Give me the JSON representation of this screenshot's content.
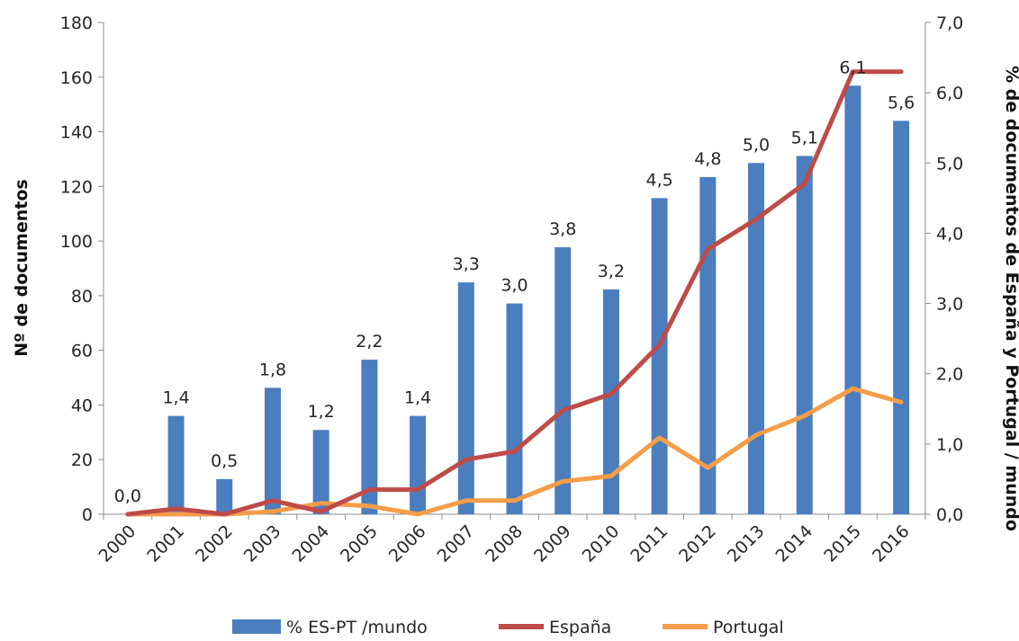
{
  "chart_data": {
    "type": "bar",
    "categories": [
      "2000",
      "2001",
      "2002",
      "2003",
      "2004",
      "2005",
      "2006",
      "2007",
      "2008",
      "2009",
      "2010",
      "2011",
      "2012",
      "2013",
      "2014",
      "2015",
      "2016"
    ],
    "series": [
      {
        "name": "% ES-PT /mundo",
        "kind": "bar",
        "axis": "right",
        "color": "#4a7ebf",
        "values": [
          0.0,
          1.4,
          0.5,
          1.8,
          1.2,
          2.2,
          1.4,
          3.3,
          3.0,
          3.8,
          3.2,
          4.5,
          4.8,
          5.0,
          5.1,
          6.1,
          5.6
        ],
        "labels": [
          "0,0",
          "1,4",
          "0,5",
          "1,8",
          "1,2",
          "2,2",
          "1,4",
          "3,3",
          "3,0",
          "3,8",
          "3,2",
          "4,5",
          "4,8",
          "5,0",
          "5,1",
          "6,1",
          "5,6"
        ]
      },
      {
        "name": "España",
        "kind": "line",
        "axis": "left",
        "color": "#be4b48",
        "values": [
          0,
          2,
          0,
          5,
          1,
          9,
          9,
          20,
          23,
          38,
          44,
          62,
          97,
          108,
          121,
          162,
          162
        ]
      },
      {
        "name": "Portugal",
        "kind": "line",
        "axis": "left",
        "color": "#f59d48",
        "values": [
          0,
          0,
          0,
          1,
          4,
          3,
          0,
          5,
          5,
          12,
          14,
          28,
          17,
          29,
          36,
          46,
          41
        ]
      }
    ],
    "left_axis": {
      "title": "Nº de documentos",
      "min": 0,
      "max": 180,
      "step": 20,
      "ticks": [
        "0",
        "20",
        "40",
        "60",
        "80",
        "100",
        "120",
        "140",
        "160",
        "180"
      ]
    },
    "right_axis": {
      "title": "% de documentos de España  y Portugal / mundo",
      "min": 0,
      "max": 7,
      "step": 1,
      "ticks": [
        "0,0",
        "1,0",
        "2,0",
        "3,0",
        "4,0",
        "5,0",
        "6,0",
        "7,0"
      ]
    },
    "grid": false,
    "legend_position": "bottom"
  }
}
